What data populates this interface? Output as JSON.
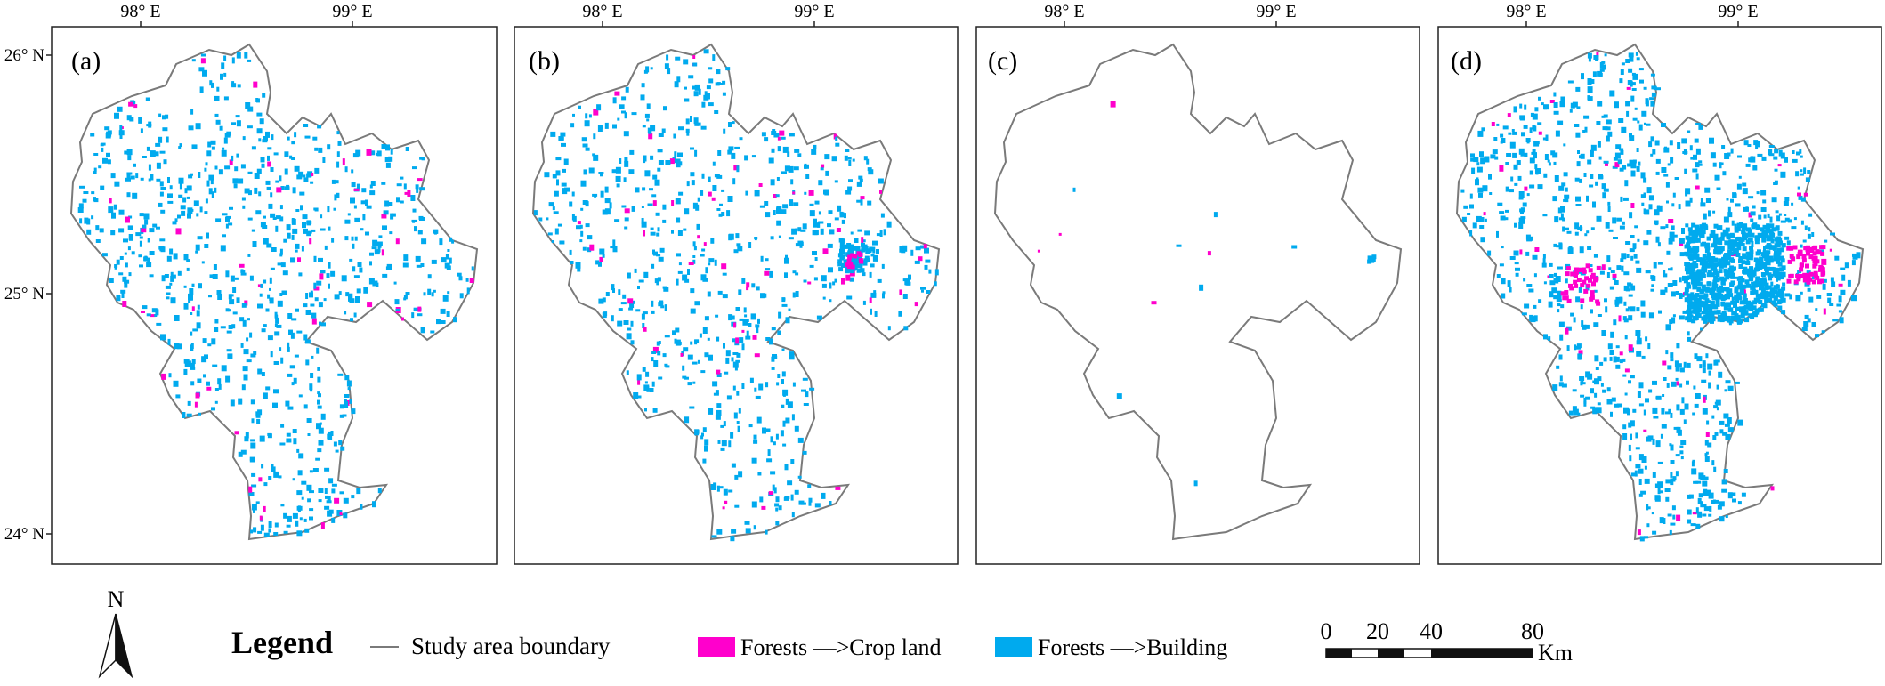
{
  "map": {
    "colors": {
      "boundary": "#7a7a7a",
      "forests_to_cropland": "#ff00cc",
      "forests_to_building": "#00aaee",
      "frame": "#222222"
    },
    "lon_ticks": [
      "98° E",
      "99° E"
    ],
    "lat_ticks": [
      "26° N",
      "25° N",
      "24° N"
    ],
    "panels": [
      {
        "label": "(a)"
      },
      {
        "label": "(b)"
      },
      {
        "label": "(c)"
      },
      {
        "label": "(d)"
      }
    ]
  },
  "legend": {
    "north": "N",
    "title": "Legend",
    "boundary_label": "Study area boundary",
    "cropland_label": "Forests —>Crop land",
    "building_label": "Forests —>Building"
  },
  "scale_bar": {
    "ticks": [
      "0",
      "20",
      "40",
      "80"
    ],
    "unit": "Km"
  }
}
